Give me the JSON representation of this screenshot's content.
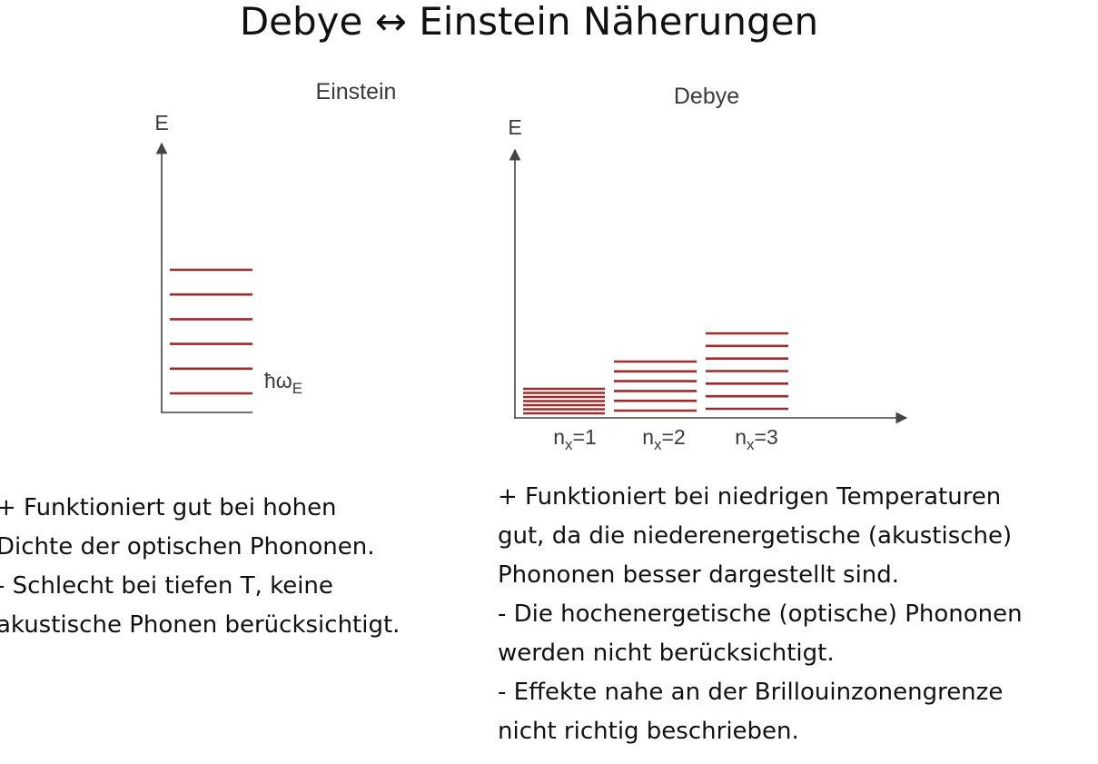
{
  "title": "Debye ↔ Einstein Näherungen",
  "colors": {
    "level_line": "#9e2a2b",
    "axis": "#444444",
    "text": "#111111"
  },
  "einstein": {
    "heading": "Einstein",
    "axis_label": "E",
    "level_label": "ħω",
    "level_label_sub": "E",
    "level_count": 6,
    "notes": [
      "+ Funktioniert gut bei hohen",
      "Dichte der optischen Phononen.",
      "- Schlecht bei tiefen T, keine",
      "akustische Phonen berücksichtigt."
    ]
  },
  "debye": {
    "heading": "Debye",
    "axis_label": "E",
    "groups": [
      {
        "label_base": "n",
        "label_sub": "x",
        "label_value": "=1",
        "level_count": 7
      },
      {
        "label_base": "n",
        "label_sub": "x",
        "label_value": "=2",
        "level_count": 6
      },
      {
        "label_base": "n",
        "label_sub": "x",
        "label_value": "=3",
        "level_count": 7
      }
    ],
    "notes": [
      "+ Funktioniert bei niedrigen Temperaturen",
      "gut, da die niederenergetische (akustische)",
      "Phononen besser dargestellt sind.",
      "- Die hochenergetische (optische) Phononen",
      "werden nicht berücksichtigt.",
      "- Effekte nahe an der Brillouinzonengrenze",
      "nicht richtig beschrieben."
    ]
  }
}
